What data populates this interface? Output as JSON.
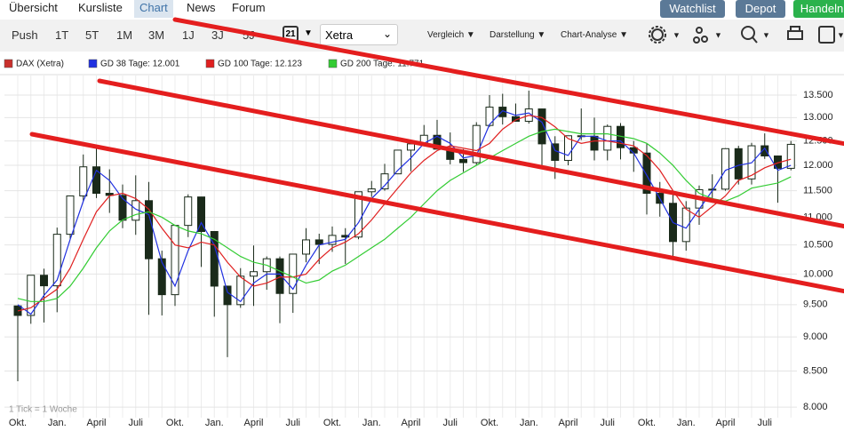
{
  "nav": {
    "tabs": [
      "Übersicht",
      "Kursliste",
      "Chart",
      "News",
      "Forum"
    ],
    "buttons": [
      "Watchlist",
      "Depot",
      "Handeln"
    ]
  },
  "toolbar": {
    "ranges": [
      "Push",
      "1T",
      "5T",
      "1M",
      "3M",
      "1J",
      "3J",
      "5J"
    ],
    "calendar_day": "21",
    "exchange": "Xetra",
    "menus": [
      "Vergleich",
      "Darstellung",
      "Chart-Analyse"
    ]
  },
  "chart_data": {
    "type": "candlestick",
    "note": "1 Tick = 1 Woche",
    "categories": [
      "Okt.",
      null,
      null,
      "Jan.",
      null,
      null,
      "April",
      null,
      null,
      "Juli",
      null,
      null,
      "Okt.",
      null,
      null,
      "Jan.",
      null,
      null,
      "April",
      null,
      null,
      "Juli",
      null,
      null,
      "Okt.",
      null,
      null,
      "Jan.",
      null,
      null,
      "April",
      null,
      null,
      "Juli",
      null,
      null,
      "Okt.",
      null,
      null,
      "Jan.",
      null,
      null,
      "April",
      null,
      null,
      "Juli",
      null,
      null,
      "Okt.",
      null,
      null,
      "Jan.",
      null,
      null,
      "April",
      null,
      null,
      "Juli",
      null,
      null
    ],
    "ylim": [
      7860,
      13950
    ],
    "log_scale": true,
    "grid": true,
    "yticks": [
      {
        "value": 8000,
        "label": "8.000"
      },
      {
        "value": 8500,
        "label": "8.500"
      },
      {
        "value": 9000,
        "label": "9.000"
      },
      {
        "value": 9500,
        "label": "9.500"
      },
      {
        "value": 10000,
        "label": "10.000"
      },
      {
        "value": 10500,
        "label": "10.500"
      },
      {
        "value": 11000,
        "label": "11.000"
      },
      {
        "value": 11500,
        "label": "11.500"
      },
      {
        "value": 12000,
        "label": "12.000"
      },
      {
        "value": 12500,
        "label": "12.500"
      },
      {
        "value": 13000,
        "label": "13.000"
      },
      {
        "value": 13500,
        "label": "13.500"
      }
    ],
    "series": [
      {
        "name": "DAX (Xetra)",
        "color": "#c9302c",
        "open": [
          9480,
          9330,
          9980,
          9805,
          10690,
          11400,
          11970,
          11450,
          11410,
          10945,
          11310,
          10260,
          9660,
          10850,
          11380,
          10740,
          9800,
          9500,
          9965,
          10040,
          10260,
          9680,
          10340,
          10590,
          10510,
          10670,
          10640,
          11480,
          11535,
          11830,
          12310,
          12440,
          12620,
          12330,
          12120,
          12055,
          12830,
          13230,
          13020,
          12920,
          13190,
          12440,
          12100,
          12610,
          12600,
          12310,
          12810,
          12360,
          12250,
          11450,
          11260,
          10560,
          11170,
          11520,
          11530,
          12340,
          11730,
          12400,
          12190,
          11940
        ],
        "high": [
          9480,
          9980,
          10090,
          10810,
          11400,
          12220,
          12390,
          11920,
          11620,
          11800,
          11670,
          10400,
          10850,
          11430,
          11380,
          10740,
          9800,
          10100,
          10490,
          10300,
          10300,
          10340,
          10800,
          10700,
          10830,
          10800,
          11480,
          11690,
          12030,
          12310,
          12480,
          12840,
          12950,
          12680,
          12330,
          12900,
          13500,
          13530,
          13310,
          13600,
          13190,
          12600,
          12600,
          13200,
          13000,
          12850,
          12880,
          12500,
          12450,
          11670,
          11470,
          11300,
          11600,
          11820,
          12350,
          12400,
          12460,
          12660,
          12190,
          12500
        ],
        "low": [
          8355,
          9200,
          9220,
          9380,
          10600,
          11300,
          11360,
          11080,
          10800,
          10680,
          9340,
          9330,
          9480,
          10640,
          10120,
          9310,
          8700,
          9450,
          9480,
          9740,
          9210,
          9370,
          10200,
          10170,
          10380,
          10170,
          10600,
          11380,
          11500,
          11830,
          11880,
          12430,
          12330,
          12020,
          11870,
          12000,
          12800,
          12850,
          12930,
          12870,
          12000,
          11730,
          12000,
          12520,
          12100,
          12100,
          12120,
          11870,
          11050,
          11010,
          10280,
          10400,
          10860,
          11300,
          11500,
          11620,
          11620,
          12130,
          11270,
          11900
        ],
        "close": [
          9330,
          9980,
          9805,
          10690,
          11400,
          11970,
          11450,
          11410,
          10945,
          11310,
          10260,
          9660,
          10850,
          11380,
          10740,
          9800,
          9500,
          9965,
          10040,
          10260,
          9680,
          10340,
          10590,
          10510,
          10670,
          10640,
          11480,
          11535,
          11830,
          12310,
          12440,
          12620,
          12330,
          12120,
          12055,
          12830,
          13230,
          13020,
          12920,
          13190,
          12440,
          12100,
          12610,
          12600,
          12310,
          12810,
          12360,
          12250,
          11450,
          11260,
          10560,
          11170,
          11520,
          11530,
          12340,
          11730,
          12400,
          12190,
          11940,
          12430
        ]
      },
      {
        "name": "GD 38 Tage: 12.001",
        "color": "#2030e0",
        "values": [
          9500,
          9350,
          9650,
          9900,
          10600,
          11300,
          11900,
          11700,
          11350,
          11150,
          11050,
          10200,
          9800,
          10400,
          10900,
          10500,
          9700,
          9550,
          9850,
          10000,
          10000,
          9750,
          10150,
          10500,
          10550,
          10600,
          10900,
          11350,
          11600,
          11900,
          12150,
          12450,
          12600,
          12450,
          12150,
          12200,
          12850,
          13150,
          13050,
          13100,
          12900,
          12300,
          12200,
          12600,
          12600,
          12500,
          12500,
          12250,
          11800,
          11350,
          10900,
          10800,
          11150,
          11500,
          11900,
          12000,
          12050,
          12350,
          11900,
          12001
        ]
      },
      {
        "name": "GD 100 Tage: 12.123",
        "color": "#e02020",
        "values": [
          9400,
          9450,
          9600,
          9750,
          10100,
          10600,
          11100,
          11400,
          11450,
          11350,
          11150,
          10800,
          10500,
          10450,
          10550,
          10500,
          10200,
          9950,
          9800,
          9850,
          9950,
          9950,
          10000,
          10250,
          10450,
          10550,
          10700,
          10950,
          11250,
          11550,
          11850,
          12100,
          12300,
          12400,
          12350,
          12300,
          12450,
          12750,
          12950,
          13050,
          13000,
          12800,
          12550,
          12450,
          12500,
          12500,
          12450,
          12400,
          12200,
          11900,
          11500,
          11150,
          11000,
          11200,
          11400,
          11700,
          11800,
          11950,
          12050,
          12123
        ]
      },
      {
        "name": "GD 200 Tage: 11.771",
        "color": "#33cc33",
        "values": [
          9600,
          9550,
          9550,
          9600,
          9800,
          10100,
          10450,
          10750,
          10950,
          11050,
          11100,
          11000,
          10850,
          10750,
          10700,
          10600,
          10450,
          10300,
          10200,
          10150,
          10050,
          9950,
          9850,
          9900,
          10050,
          10150,
          10300,
          10450,
          10600,
          10800,
          11000,
          11250,
          11500,
          11700,
          11850,
          12000,
          12150,
          12300,
          12450,
          12600,
          12700,
          12750,
          12700,
          12650,
          12650,
          12650,
          12600,
          12550,
          12450,
          12250,
          12000,
          11700,
          11450,
          11350,
          11300,
          11400,
          11550,
          11600,
          11650,
          11771
        ]
      }
    ]
  }
}
